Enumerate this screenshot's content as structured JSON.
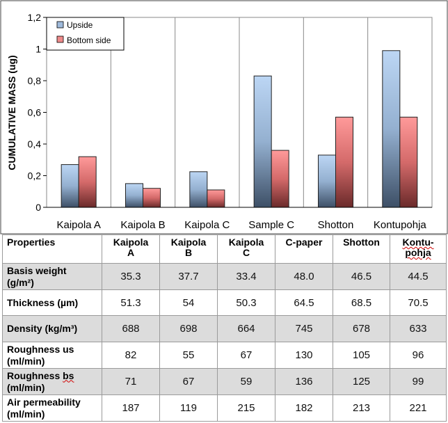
{
  "chart_data": {
    "type": "bar",
    "categories": [
      "Kaipola A",
      "Kaipola B",
      "Kaipola C",
      "Sample C",
      "Shotton",
      "Kontupohja"
    ],
    "series": [
      {
        "name": "Upside",
        "values": [
          0.27,
          0.15,
          0.225,
          0.83,
          0.33,
          0.99
        ]
      },
      {
        "name": "Bottom side",
        "values": [
          0.32,
          0.12,
          0.11,
          0.36,
          0.57,
          0.57
        ]
      }
    ],
    "ylabel": "CUMULATIVE MASS (ug)",
    "xlabel": "",
    "ylim": [
      0,
      1.2
    ],
    "yticks": [
      "0",
      "0,2",
      "0,4",
      "0,6",
      "0,8",
      "1",
      "1,2"
    ],
    "grid": "vertical",
    "legend_position": "top-left",
    "colors": {
      "Upside": "#a9c6e8",
      "Bottom side": "#f08a8a"
    }
  },
  "table": {
    "header_label": "Properties",
    "columns": [
      [
        "Kaipola",
        "A"
      ],
      [
        "Kaipola",
        "B"
      ],
      [
        "Kaipola",
        "C"
      ],
      [
        "C-paper"
      ],
      [
        "Shotton"
      ],
      [
        "Kontu-",
        "pohja"
      ]
    ],
    "rows": [
      {
        "label": [
          "Basis weight",
          "(g/m²)"
        ],
        "values": [
          "35.3",
          "37.7",
          "33.4",
          "48.0",
          "46.5",
          "44.5"
        ]
      },
      {
        "label": [
          "Thickness (µm)"
        ],
        "values": [
          "51.3",
          "54",
          "50.3",
          "64.5",
          "68.5",
          "70.5"
        ]
      },
      {
        "label": [
          "Density (kg/m³)"
        ],
        "values": [
          "688",
          "698",
          "664",
          "745",
          "678",
          "633"
        ]
      },
      {
        "label": [
          "Roughness us",
          "(ml/min)"
        ],
        "values": [
          "82",
          "55",
          "67",
          "130",
          "105",
          "96"
        ]
      },
      {
        "label": [
          "Roughness bs",
          "(ml/min)"
        ],
        "values": [
          "71",
          "67",
          "59",
          "136",
          "125",
          "99"
        ]
      },
      {
        "label": [
          "Air permeability",
          "(ml/min)"
        ],
        "values": [
          "187",
          "119",
          "215",
          "182",
          "213",
          "221"
        ]
      }
    ]
  }
}
